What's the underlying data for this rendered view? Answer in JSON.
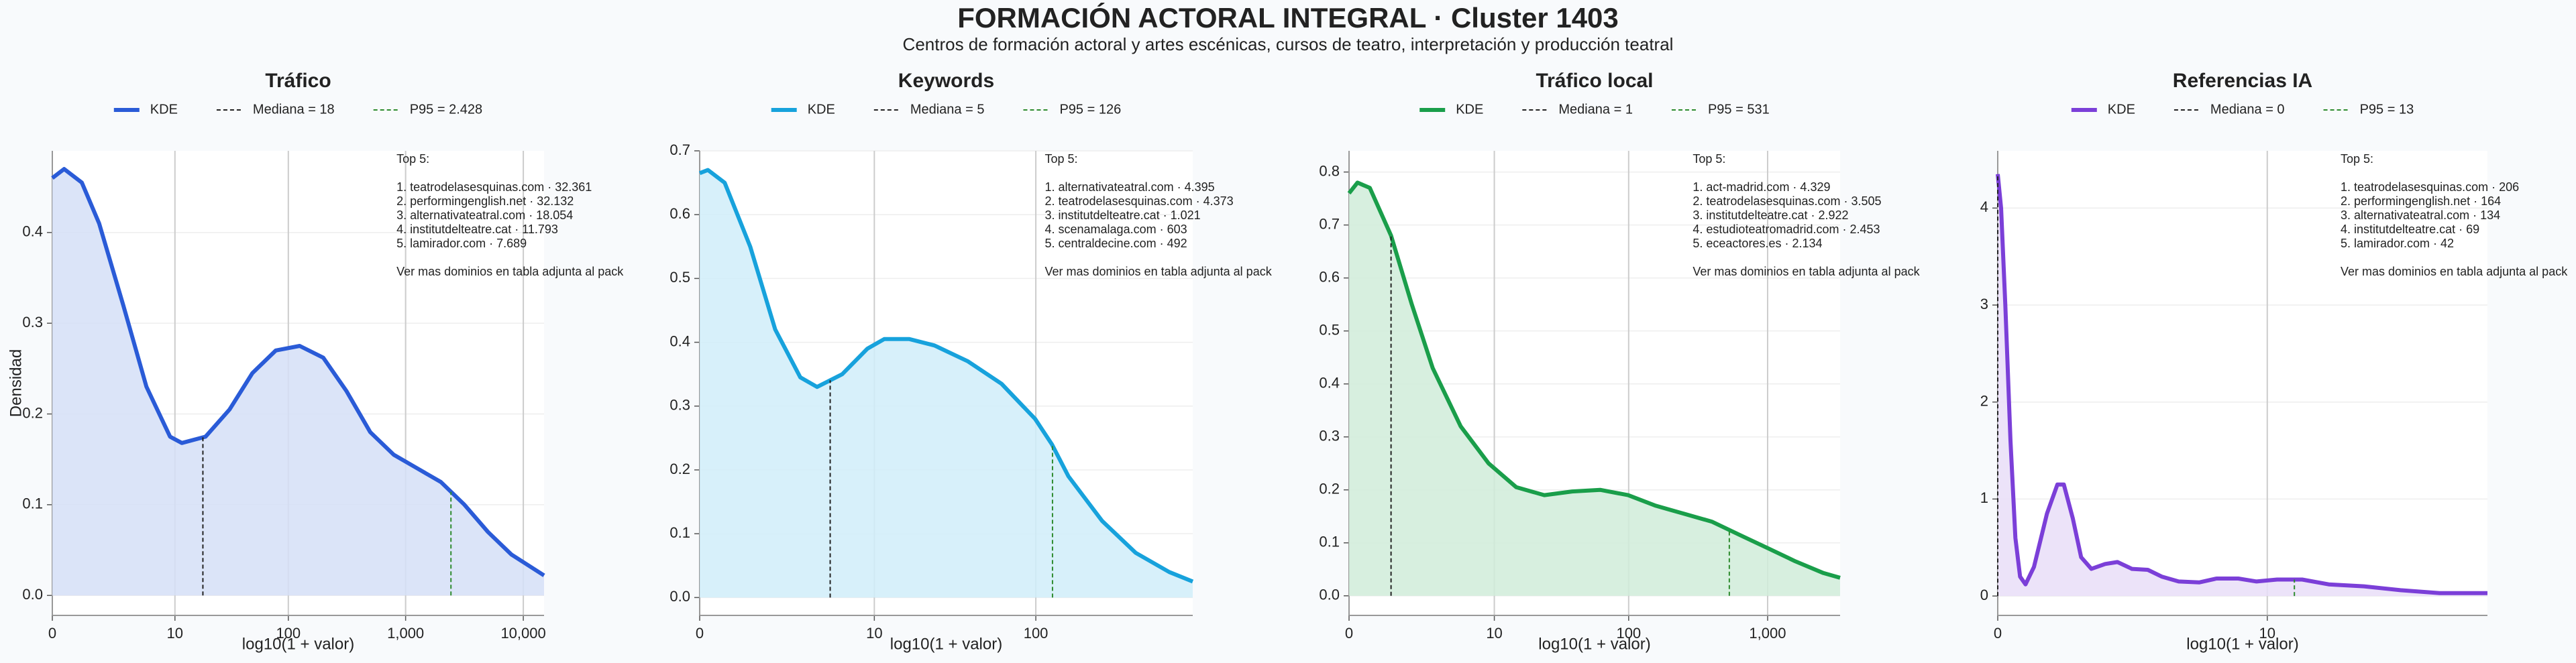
{
  "title": "FORMACIÓN ACTORAL INTEGRAL · Cluster 1403",
  "subtitle": "Centros de formación actoral y artes escénicas, cursos de teatro, interpretación y producción teatral",
  "chart_data": [
    {
      "type": "line",
      "title": "Tráfico",
      "x_label": "log10(1 + valor)",
      "y_label": "Densidad",
      "xscale": "log1p",
      "grid": true,
      "xlim": [
        0,
        15000
      ],
      "xticks": [
        0,
        10,
        100,
        {
          "value": 1000,
          "label": "1,000"
        },
        {
          "value": 10000,
          "label": "10,000"
        }
      ],
      "ylim": [
        -0.022,
        0.49
      ],
      "yticks": [
        {
          "value": 0,
          "label": "0.0"
        },
        0.1,
        0.2,
        0.3,
        0.4
      ],
      "x": [
        0,
        0.26,
        0.78,
        1.5,
        3,
        5.3,
        9,
        11.6,
        19,
        31,
        49,
        78,
        125,
        199,
        315,
        500,
        793,
        1258,
        1994,
        3161,
        5011,
        7942,
        15000
      ],
      "series": [
        {
          "name": "KDE",
          "color": "#2a5bd7",
          "fill": "#d5dff7",
          "values": [
            0.46,
            0.47,
            0.455,
            0.41,
            0.32,
            0.23,
            0.175,
            0.168,
            0.175,
            0.205,
            0.245,
            0.27,
            0.275,
            0.262,
            0.225,
            0.18,
            0.155,
            0.14,
            0.125,
            0.1,
            0.07,
            0.045,
            0.022
          ]
        }
      ],
      "reference_lines": [
        {
          "name": "Mediana = 18",
          "value": 18,
          "color": "#222222"
        },
        {
          "name": "P95 = 2.428",
          "value": 2428,
          "color": "#2e8b2e"
        }
      ],
      "annotation": {
        "title": "Top 5:",
        "lines": [
          "1. teatrodelasesquinas.com · 32.361",
          "2. performingenglish.net · 32.132",
          "3. alternativateatral.com · 18.054",
          "4. institutdelteatre.cat · 11.793",
          "5. lamirador.com · 7.689"
        ],
        "note": "Ver mas dominios en tabla adjunta al pack"
      }
    },
    {
      "type": "line",
      "title": "Keywords",
      "x_label": "log10(1 + valor)",
      "xscale": "log1p",
      "grid": true,
      "xlim": [
        0,
        870
      ],
      "xticks": [
        0,
        10,
        100
      ],
      "ylim": [
        -0.028,
        0.7
      ],
      "yticks": [
        {
          "value": 0,
          "label": "0.0"
        },
        0.1,
        0.2,
        0.3,
        0.4,
        0.5,
        0.6,
        0.7
      ],
      "x": [
        0,
        0.12,
        0.41,
        1.0,
        1.82,
        2.98,
        4.01,
        6.08,
        9,
        11.6,
        16.8,
        24.1,
        38.8,
        62.1,
        99,
        125,
        157,
        250,
        397,
        630,
        870
      ],
      "series": [
        {
          "name": "KDE",
          "color": "#17a2dc",
          "fill": "#d0edf9",
          "values": [
            0.665,
            0.67,
            0.65,
            0.55,
            0.42,
            0.345,
            0.33,
            0.35,
            0.39,
            0.405,
            0.405,
            0.395,
            0.37,
            0.335,
            0.28,
            0.24,
            0.19,
            0.12,
            0.07,
            0.04,
            0.025
          ]
        }
      ],
      "reference_lines": [
        {
          "name": "Mediana = 5",
          "value": 5,
          "color": "#222222"
        },
        {
          "name": "P95 = 126",
          "value": 126,
          "color": "#2e8b2e"
        }
      ],
      "annotation": {
        "title": "Top 5:",
        "lines": [
          "1. alternativateatral.com · 4.395",
          "2. teatrodelasesquinas.com · 4.373",
          "3. institutdelteatre.cat · 1.021",
          "4. scenamalaga.com · 603",
          "5. centraldecine.com · 492"
        ],
        "note": "Ver mas dominios en tabla adjunta al pack"
      }
    },
    {
      "type": "line",
      "title": "Tráfico local",
      "x_label": "log10(1 + valor)",
      "xscale": "log1p",
      "grid": true,
      "xlim": [
        0,
        3310
      ],
      "xticks": [
        0,
        10,
        100,
        {
          "value": 1000,
          "label": "1,000"
        }
      ],
      "ylim": [
        -0.037,
        0.84
      ],
      "yticks": [
        {
          "value": 0,
          "label": "0.0"
        },
        0.1,
        0.2,
        0.3,
        0.4,
        0.5,
        0.6,
        0.7,
        0.8
      ],
      "x": [
        0,
        0.15,
        0.41,
        1.0,
        1.82,
        2.98,
        5.31,
        9,
        14.8,
        24.1,
        38.8,
        62.1,
        99,
        157,
        250,
        397,
        630,
        999,
        1584,
        2511,
        3310
      ],
      "series": [
        {
          "name": "KDE",
          "color": "#1a9e4a",
          "fill": "#d0ecd9",
          "values": [
            0.76,
            0.78,
            0.77,
            0.68,
            0.55,
            0.43,
            0.32,
            0.25,
            0.205,
            0.19,
            0.197,
            0.2,
            0.19,
            0.17,
            0.155,
            0.14,
            0.115,
            0.09,
            0.065,
            0.043,
            0.034
          ]
        }
      ],
      "reference_lines": [
        {
          "name": "Mediana = 1",
          "value": 1,
          "color": "#222222"
        },
        {
          "name": "P95 = 531",
          "value": 531,
          "color": "#2e8b2e"
        }
      ],
      "annotation": {
        "title": "Top 5:",
        "lines": [
          "1. act-madrid.com · 4.329",
          "2. teatrodelasesquinas.com · 3.505",
          "3. institutdelteatre.cat · 2.922",
          "4. estudioteatromadrid.com · 2.453",
          "5. eceactores.es · 2.134"
        ],
        "note": "Ver mas dominios en tabla adjunta al pack"
      }
    },
    {
      "type": "line",
      "title": "Referencias IA",
      "x_label": "log10(1 + valor)",
      "xscale": "log1p",
      "grid": true,
      "xlim": [
        0,
        77
      ],
      "xticks": [
        0,
        10
      ],
      "ylim": [
        -0.2,
        4.59
      ],
      "yticks": [
        0,
        1,
        2,
        3,
        4
      ],
      "x": [
        0,
        0.03,
        0.07,
        0.12,
        0.17,
        0.22,
        0.28,
        0.38,
        0.55,
        0.7,
        0.8,
        0.95,
        1.1,
        1.3,
        1.6,
        1.9,
        2.3,
        2.8,
        3.3,
        4,
        5,
        6,
        7.5,
        9,
        11,
        14,
        18,
        25,
        35,
        50,
        77
      ],
      "series": [
        {
          "name": "KDE",
          "color": "#7b3fd8",
          "fill": "#e9def8",
          "values": [
            4.35,
            4.0,
            3.0,
            1.6,
            0.6,
            0.2,
            0.12,
            0.3,
            0.85,
            1.15,
            1.15,
            0.8,
            0.4,
            0.28,
            0.33,
            0.35,
            0.28,
            0.27,
            0.2,
            0.15,
            0.14,
            0.18,
            0.18,
            0.15,
            0.17,
            0.17,
            0.12,
            0.1,
            0.06,
            0.03,
            0.03
          ]
        }
      ],
      "reference_lines": [
        {
          "name": "Mediana = 0",
          "value": 0,
          "color": "#222222"
        },
        {
          "name": "P95 = 13",
          "value": 13,
          "color": "#2e8b2e"
        }
      ],
      "annotation": {
        "title": "Top 5:",
        "lines": [
          "1. teatrodelasesquinas.com · 206",
          "2. performingenglish.net · 164",
          "3. alternativateatral.com · 134",
          "4. institutdelteatre.cat · 69",
          "5. lamirador.com · 42"
        ],
        "note": "Ver mas dominios en tabla adjunta al pack"
      }
    }
  ]
}
